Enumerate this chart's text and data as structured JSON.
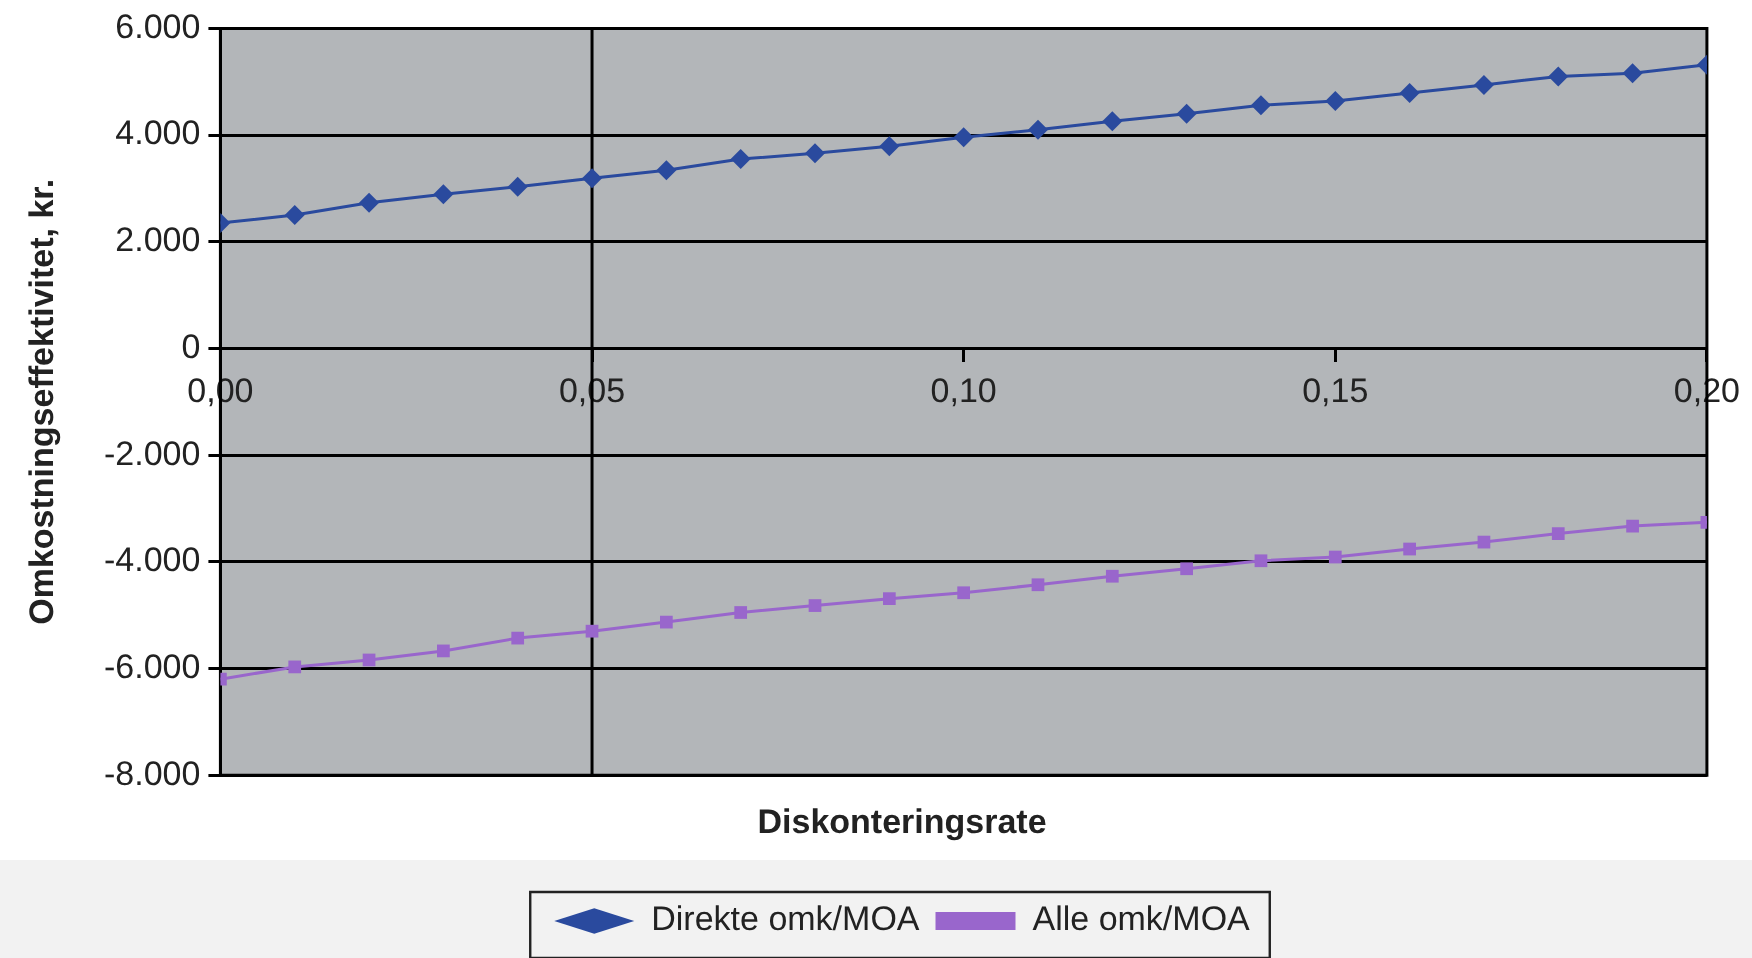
{
  "chart_data": {
    "type": "line",
    "xlabel": "Diskonteringsrate",
    "ylabel": "Omkostningseffektivitet, kr.",
    "x": [
      0,
      0.01,
      0.02,
      0.03,
      0.04,
      0.05,
      0.06,
      0.07,
      0.08,
      0.09,
      0.1,
      0.11,
      0.12,
      0.13,
      0.14,
      0.15,
      0.16,
      0.17,
      0.18,
      0.19,
      0.2
    ],
    "series": [
      {
        "name": "Direkte omk/MOA",
        "color": "#2a4a9e",
        "marker": "diamond",
        "values": [
          2350,
          2500,
          2730,
          2890,
          3030,
          3190,
          3340,
          3550,
          3660,
          3790,
          3960,
          4100,
          4260,
          4400,
          4560,
          4640,
          4790,
          4940,
          5100,
          5160,
          5320
        ]
      },
      {
        "name": "Alle omk/MOA",
        "color": "#9966cc",
        "marker": "square",
        "values": [
          -6200,
          -5970,
          -5840,
          -5670,
          -5430,
          -5300,
          -5130,
          -4950,
          -4820,
          -4690,
          -4580,
          -4430,
          -4270,
          -4130,
          -3980,
          -3910,
          -3760,
          -3630,
          -3470,
          -3330,
          -3260
        ]
      }
    ],
    "xlim": [
      0,
      0.2
    ],
    "xticks": [
      {
        "value": 0,
        "label": "0,00"
      },
      {
        "value": 0.05,
        "label": "0,05"
      },
      {
        "value": 0.1,
        "label": "0,10"
      },
      {
        "value": 0.15,
        "label": "0,15"
      },
      {
        "value": 0.2,
        "label": "0,20"
      }
    ],
    "ylim": [
      -8000,
      6000
    ],
    "yticks": [
      {
        "value": -8000,
        "label": "-8.000"
      },
      {
        "value": -6000,
        "label": "-6.000"
      },
      {
        "value": -4000,
        "label": "-4.000"
      },
      {
        "value": -2000,
        "label": "-2.000"
      },
      {
        "value": 0,
        "label": "0"
      },
      {
        "value": 2000,
        "label": "2.000"
      },
      {
        "value": 4000,
        "label": "4.000"
      },
      {
        "value": 6000,
        "label": "6.000"
      }
    ],
    "ref_lines": [
      {
        "axis": "x",
        "value": 0.05,
        "color": "#000000"
      }
    ],
    "grid": "y",
    "legend": "bottom",
    "line_style": "solid"
  }
}
